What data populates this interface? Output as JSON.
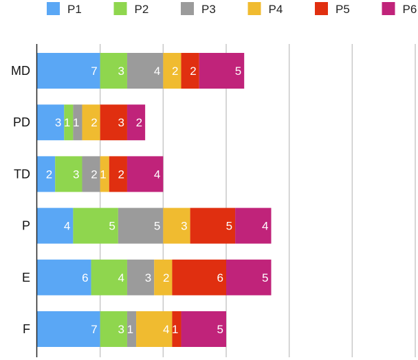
{
  "chart_data": {
    "type": "bar",
    "orientation": "horizontal",
    "stacked": true,
    "categories": [
      "MD",
      "PD",
      "TD",
      "P",
      "E",
      "F"
    ],
    "series": [
      {
        "name": "P1",
        "color": "#5aa7f5",
        "values": [
          7,
          3,
          2,
          4,
          6,
          7
        ]
      },
      {
        "name": "P2",
        "color": "#8fd64e",
        "values": [
          3,
          1,
          3,
          5,
          4,
          3
        ]
      },
      {
        "name": "P3",
        "color": "#9b9b9b",
        "values": [
          4,
          1,
          2,
          5,
          3,
          1
        ]
      },
      {
        "name": "P4",
        "color": "#f0bb30",
        "values": [
          2,
          2,
          1,
          3,
          2,
          4
        ]
      },
      {
        "name": "P5",
        "color": "#e02f10",
        "values": [
          2,
          3,
          2,
          5,
          6,
          1
        ]
      },
      {
        "name": "P6",
        "color": "#c0237a",
        "values": [
          5,
          2,
          4,
          4,
          5,
          5
        ]
      }
    ],
    "xlim": [
      0,
      42
    ],
    "grid": true,
    "legend_position": "top"
  }
}
